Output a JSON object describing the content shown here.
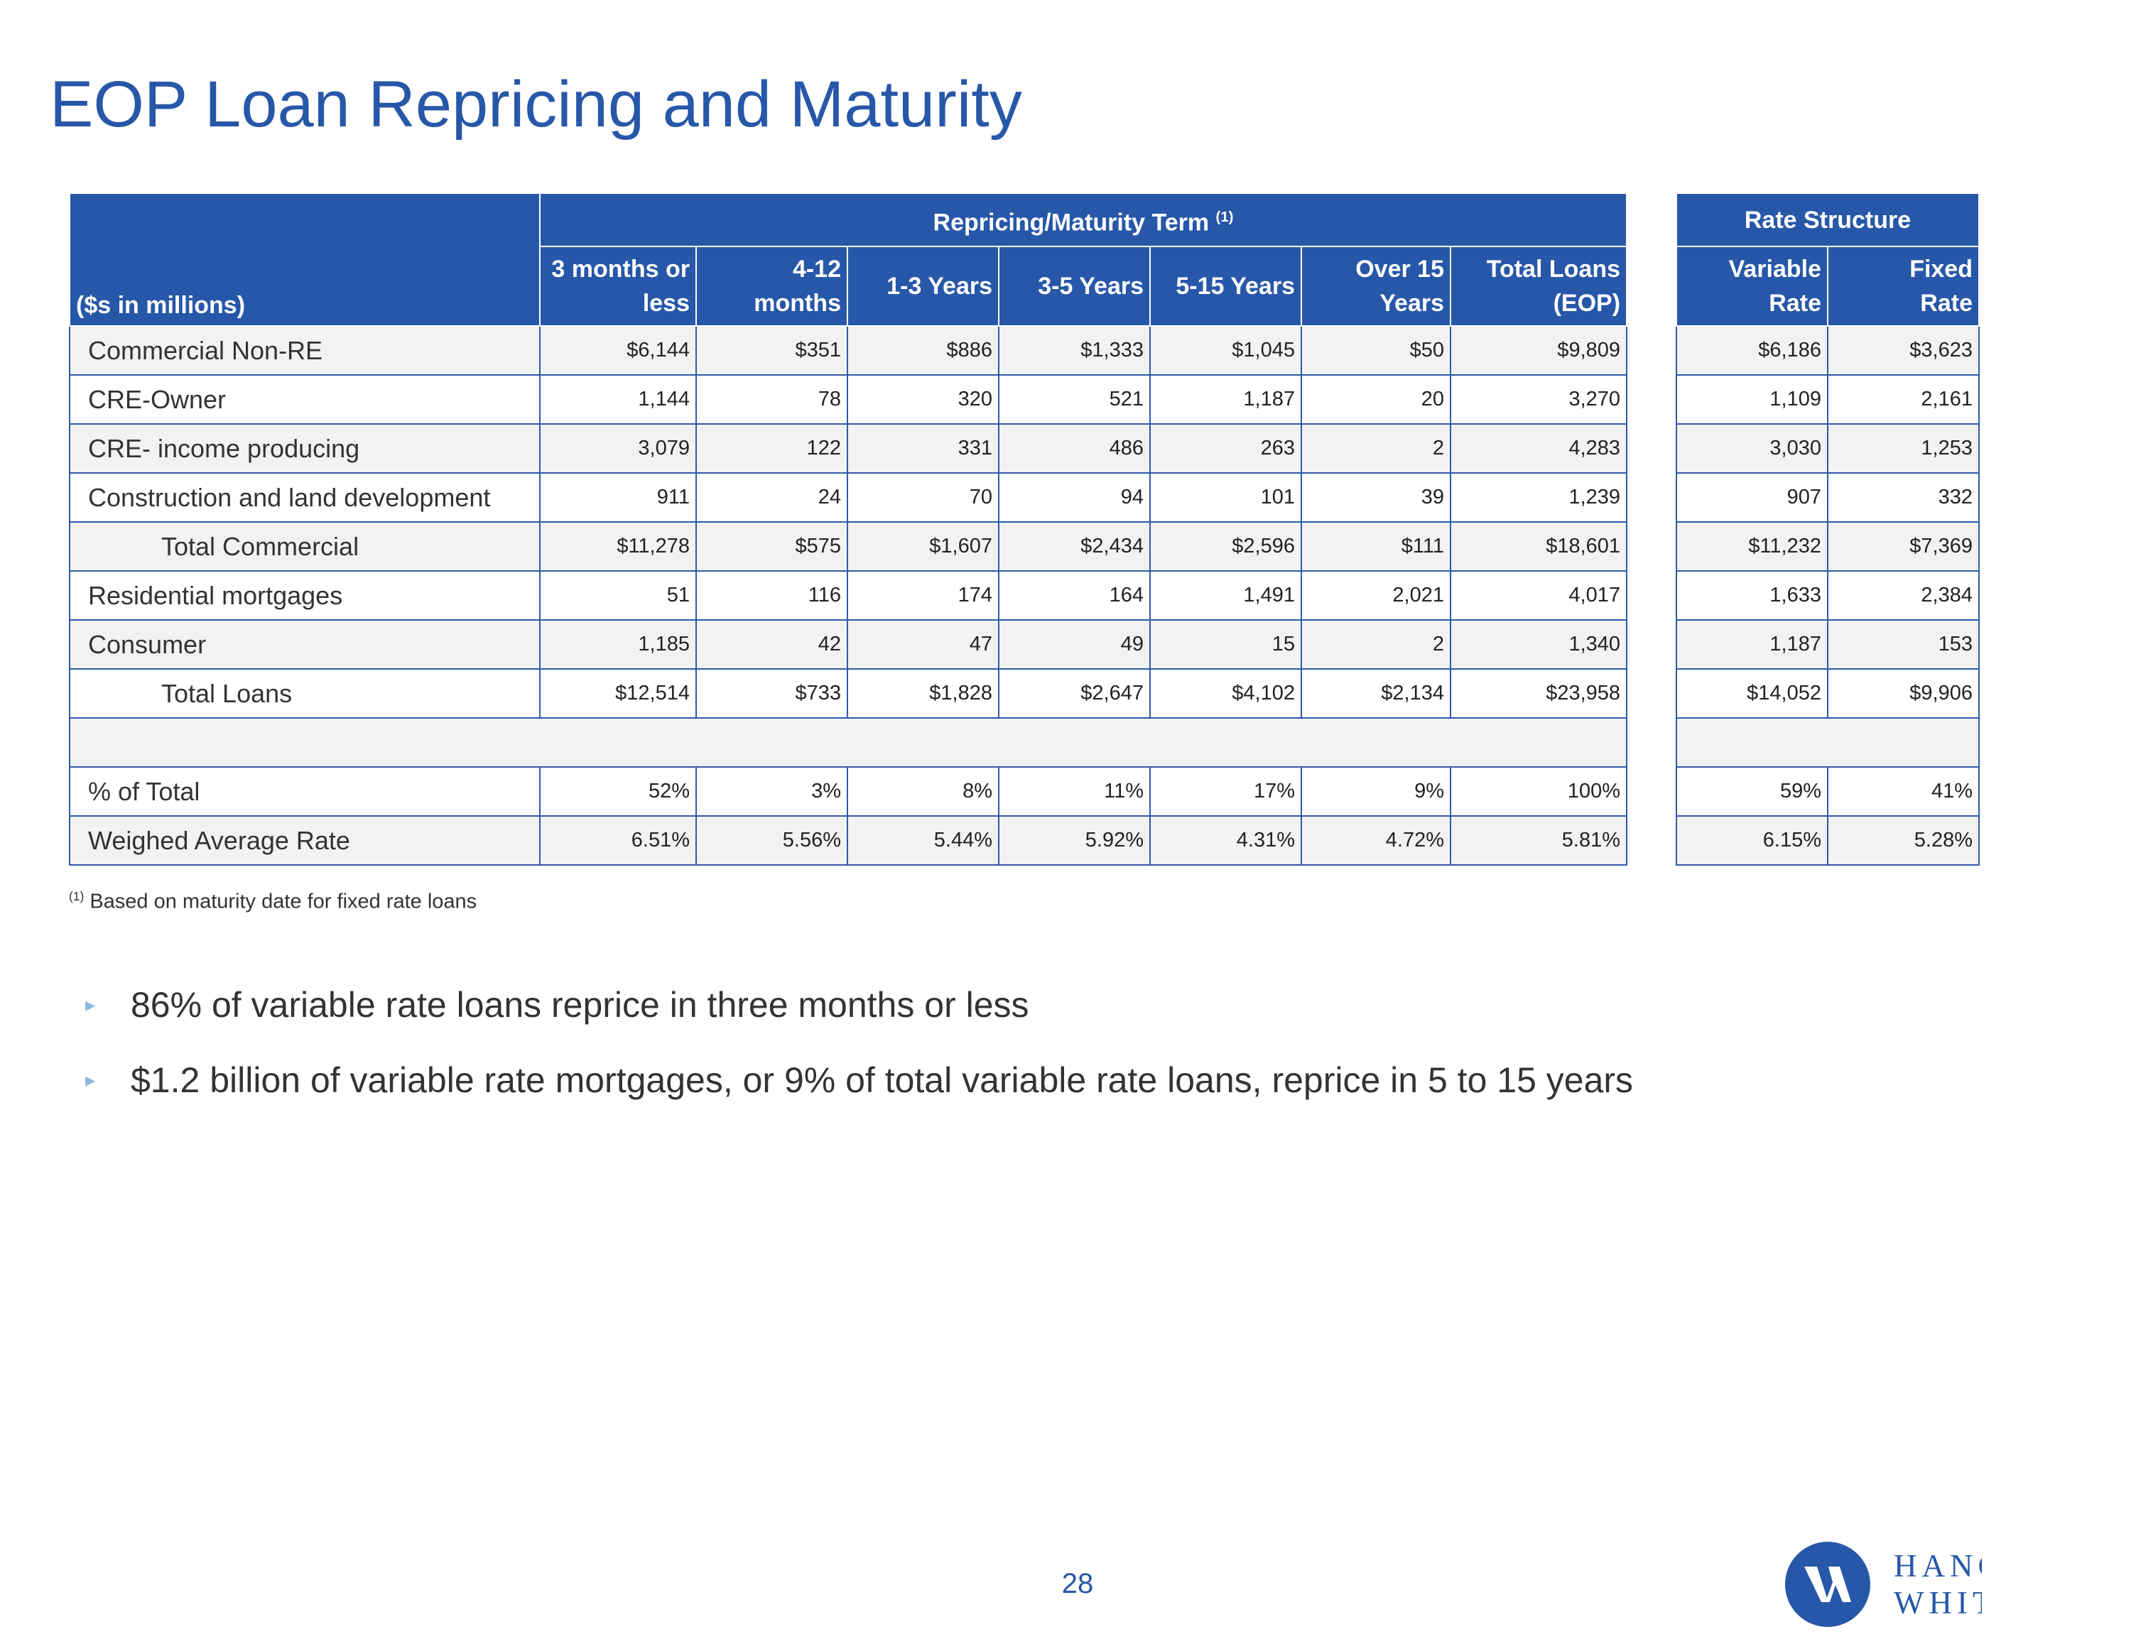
{
  "title": "EOP Loan Repricing and Maturity",
  "table": {
    "corner": "($s in millions)",
    "group_headers": [
      {
        "text": "Repricing/Maturity Term",
        "note": "(1)"
      },
      {
        "text": "Rate Structure"
      }
    ],
    "columns": [
      [
        "3 months or",
        "less"
      ],
      [
        "4-12",
        "months"
      ],
      [
        "1-3 Years"
      ],
      [
        "3-5 Years"
      ],
      [
        "5-15 Years"
      ],
      [
        "Over 15",
        "Years"
      ],
      [
        "Total Loans",
        "(EOP)"
      ]
    ],
    "rate_columns": [
      [
        "Variable",
        "Rate"
      ],
      [
        "Fixed",
        "Rate"
      ]
    ],
    "rows": [
      {
        "label": "Commercial Non-RE",
        "values": [
          "$6,144",
          "$351",
          "$886",
          "$1,333",
          "$1,045",
          "$50",
          "$9,809"
        ],
        "rate": [
          "$6,186",
          "$3,623"
        ]
      },
      {
        "label": "CRE-Owner",
        "values": [
          "1,144",
          "78",
          "320",
          "521",
          "1,187",
          "20",
          "3,270"
        ],
        "rate": [
          "1,109",
          "2,161"
        ]
      },
      {
        "label": "CRE- income producing",
        "values": [
          "3,079",
          "122",
          "331",
          "486",
          "263",
          "2",
          "4,283"
        ],
        "rate": [
          "3,030",
          "1,253"
        ]
      },
      {
        "label": "Construction and land development",
        "values": [
          "911",
          "24",
          "70",
          "94",
          "101",
          "39",
          "1,239"
        ],
        "rate": [
          "907",
          "332"
        ]
      },
      {
        "label": "Total Commercial",
        "indent": true,
        "values": [
          "$11,278",
          "$575",
          "$1,607",
          "$2,434",
          "$2,596",
          "$111",
          "$18,601"
        ],
        "rate": [
          "$11,232",
          "$7,369"
        ]
      },
      {
        "label": "Residential mortgages",
        "values": [
          "51",
          "116",
          "174",
          "164",
          "1,491",
          "2,021",
          "4,017"
        ],
        "rate": [
          "1,633",
          "2,384"
        ]
      },
      {
        "label": "Consumer",
        "values": [
          "1,185",
          "42",
          "47",
          "49",
          "15",
          "2",
          "1,340"
        ],
        "rate": [
          "1,187",
          "153"
        ]
      },
      {
        "label": "Total Loans",
        "indent": true,
        "values": [
          "$12,514",
          "$733",
          "$1,828",
          "$2,647",
          "$4,102",
          "$2,134",
          "$23,958"
        ],
        "rate": [
          "$14,052",
          "$9,906"
        ]
      },
      null,
      {
        "label": "% of Total",
        "values": [
          "52%",
          "3%",
          "8%",
          "11%",
          "17%",
          "9%",
          "100%"
        ],
        "rate": [
          "59%",
          "41%"
        ]
      },
      {
        "label": "Weighed Average Rate",
        "values": [
          "6.51%",
          "5.56%",
          "5.44%",
          "5.92%",
          "4.31%",
          "4.72%",
          "5.81%"
        ],
        "rate": [
          "6.15%",
          "5.28%"
        ]
      }
    ]
  },
  "footnote": {
    "note": "(1)",
    "text": "Based on maturity date for fixed rate loans"
  },
  "bullets": [
    "86% of variable rate loans reprice in three months or less",
    "$1.2 billion of variable rate mortgages, or 9% of total variable rate loans, reprice in 5 to 15 years"
  ],
  "page_number": "28",
  "logo": {
    "line1": "HANCOCK",
    "line2": "WHITNEY"
  }
}
